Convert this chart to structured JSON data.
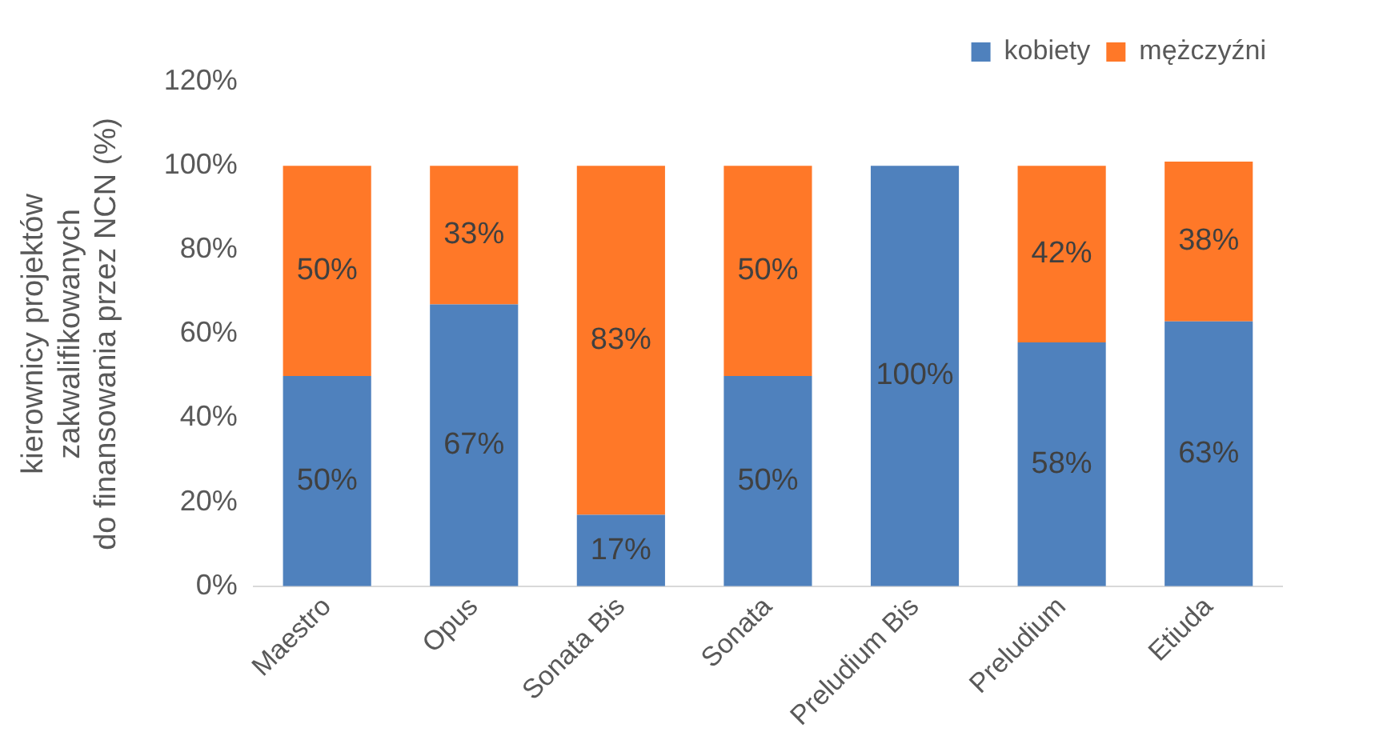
{
  "chart_data": {
    "type": "bar",
    "stacked": true,
    "ylabel": "kierownicy projektów\nzakwalifikowanych\ndo finansowania przez NCN (%)",
    "categories": [
      "Maestro",
      "Opus",
      "Sonata Bis",
      "Sonata",
      "Preludium Bis",
      "Preludium",
      "Etiuda"
    ],
    "series": [
      {
        "name": "kobiety",
        "color": "#4f81bd",
        "values": [
          50,
          67,
          17,
          50,
          100,
          58,
          63
        ],
        "value_labels": [
          "50%",
          "67%",
          "17%",
          "50%",
          "100%",
          "58%",
          "63%"
        ]
      },
      {
        "name": "mężczyźni",
        "color": "#ff7828",
        "values": [
          50,
          33,
          83,
          50,
          0,
          42,
          38
        ],
        "value_labels": [
          "50%",
          "33%",
          "83%",
          "50%",
          null,
          "42%",
          "38%"
        ]
      }
    ],
    "ylim": [
      0,
      120
    ],
    "yticks": [
      {
        "value": 0,
        "label": "0%"
      },
      {
        "value": 20,
        "label": "20%"
      },
      {
        "value": 40,
        "label": "40%"
      },
      {
        "value": 60,
        "label": "60%"
      },
      {
        "value": 80,
        "label": "80%"
      },
      {
        "value": 100,
        "label": "100%"
      },
      {
        "value": 120,
        "label": "120%"
      }
    ],
    "grid": false,
    "legend": "top right"
  }
}
